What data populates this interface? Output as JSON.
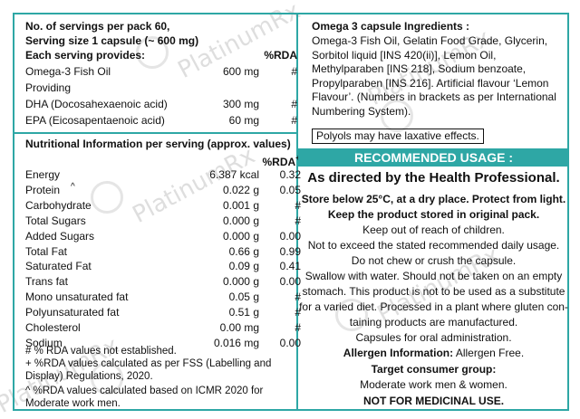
{
  "servings": {
    "line1": "No. of servings per pack 60,",
    "line2": "Serving size 1 capsule (~ 600 mg)",
    "header_left": "Each serving provides:",
    "header_rda": "%RDA",
    "rows": [
      {
        "name": "Omega-3 Fish Oil",
        "qty": "600 mg",
        "rda": "#"
      },
      {
        "name": "Providing",
        "qty": "",
        "rda": ""
      },
      {
        "name": "DHA (Docosahexaenoic acid)",
        "qty": "300 mg",
        "rda": "#"
      },
      {
        "name": "EPA (Eicosapentaenoic acid)",
        "qty": "60 mg",
        "rda": "#"
      }
    ]
  },
  "nutrition": {
    "title": "Nutritional Information per serving (approx. values)",
    "rda_header": "%RDA",
    "rda_sup": "+",
    "rows": [
      {
        "name": "Energy",
        "value": "6.387 kcal",
        "rda": "0.32"
      },
      {
        "name": "Protein",
        "sup": "^",
        "value": "0.022 g",
        "rda": "0.05"
      },
      {
        "name": "Carbohydrate",
        "value": "0.001 g",
        "rda": "#"
      },
      {
        "name": "Total Sugars",
        "value": "0.000 g",
        "rda": "#"
      },
      {
        "name": "Added Sugars",
        "value": "0.000 g",
        "rda": "0.00"
      },
      {
        "name": "Total Fat",
        "value": "0.66 g",
        "rda": "0.99"
      },
      {
        "name": "Saturated Fat",
        "value": "0.09 g",
        "rda": "0.41"
      },
      {
        "name": "Trans fat",
        "value": "0.000 g",
        "rda": "0.00"
      },
      {
        "name": "Mono unsaturated fat",
        "value": "0.05 g",
        "rda": "#"
      },
      {
        "name": "Polyunsaturated fat",
        "value": "0.51 g",
        "rda": "#"
      },
      {
        "name": "Cholesterol",
        "value": "0.00 mg",
        "rda": "#"
      },
      {
        "name": "Sodium",
        "value": "0.016 mg",
        "rda": "0.00"
      }
    ],
    "footnote1": "# % RDA values not established.",
    "footnote2": "+ %RDA values calculated as per FSS (Labelling and Display) Regulations, 2020.",
    "footnote3": "^ %RDA values calculated based  on ICMR 2020 for Moderate work men."
  },
  "ingredients": {
    "title": "Omega 3 capsule Ingredients :",
    "text": "Omega-3 Fish Oil, Gelatin Food Grade, Glycerin, Sorbitol liquid [INS 420(ii)], Lemon Oil, Methylparaben [INS 218], Sodium benzoate, Propylparaben [INS 216]. Artificial flavour ‘Lemon Flavour’. (Numbers in brackets as per International Numbering System).",
    "polyols": "Polyols may have laxative effects."
  },
  "usage": {
    "banner": "RECOMMENDED USAGE :",
    "directed": "As directed by the Health Professional.",
    "store": "Store below 25°C, at a dry place. Protect from light.",
    "keep_pack": "Keep the product stored in original pack.",
    "keep_children": "Keep out of reach of children.",
    "not_exceed": "Not to exceed the stated recommended daily usage.",
    "no_chew": "Do not chew or crush the capsule.",
    "swallow1": "Swallow with water. Should not be taken on an empty",
    "swallow2": "stomach. This product is not to be used as a substitute",
    "swallow3": "for a varied diet. Processed in a plant where gluten con-",
    "swallow4": "taining products are manufactured.",
    "oral": "Capsules for oral administration.",
    "allergen_label": "Allergen Information:",
    "allergen_value": " Allergen Free.",
    "target_label": "Target consumer group:",
    "target_value": "Moderate work men & women.",
    "not_medicinal": "NOT FOR MEDICINAL USE."
  },
  "watermark": "PlatinumRx",
  "colors": {
    "accent": "#2ea7a5"
  }
}
